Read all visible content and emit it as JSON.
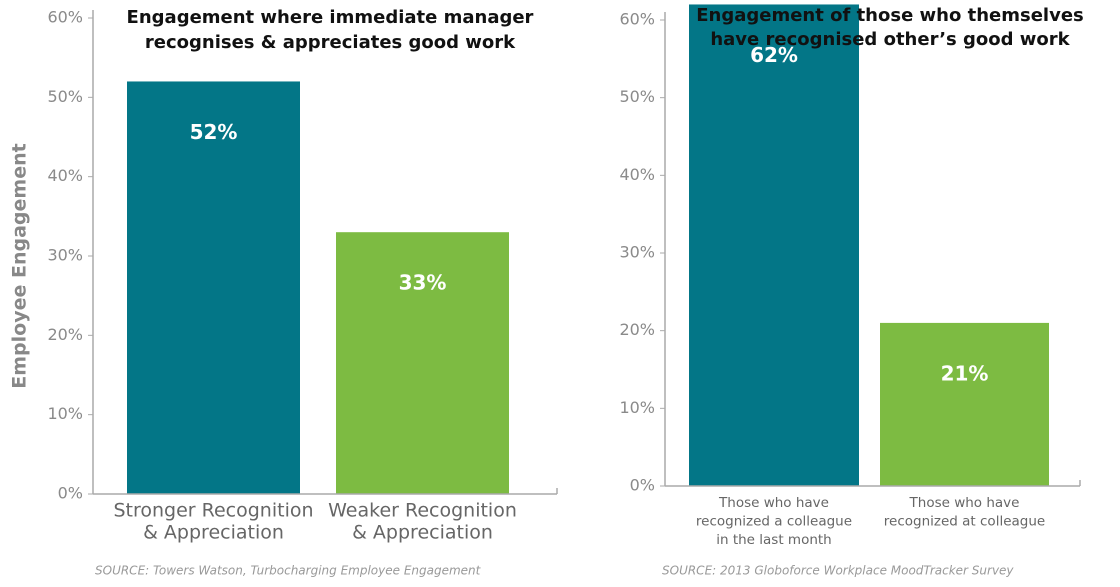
{
  "chart_data": [
    {
      "type": "bar",
      "title": [
        "Engagement where immediate manager",
        "recognises & appreciates good work"
      ],
      "ylabel": "Employee Engagement",
      "categories": [
        [
          "Stronger Recognition",
          "& Appreciation"
        ],
        [
          "Weaker Recognition",
          "& Appreciation"
        ]
      ],
      "values": [
        52,
        33
      ],
      "value_labels": [
        "52%",
        "33%"
      ],
      "colors": [
        "#037687",
        "#7dbb42"
      ],
      "ylim": [
        0,
        60
      ],
      "yticks": [
        {
          "value": 0,
          "label": "0%"
        },
        {
          "value": 10,
          "label": "10%"
        },
        {
          "value": 20,
          "label": "20%"
        },
        {
          "value": 30,
          "label": "30%"
        },
        {
          "value": 40,
          "label": "40%"
        },
        {
          "value": 50,
          "label": "50%"
        },
        {
          "value": 60,
          "label": "60%"
        }
      ],
      "source": "SOURCE: Towers Watson, Turbocharging Employee Engagement"
    },
    {
      "type": "bar",
      "title": [
        "Engagement of those who themselves",
        "have recognised other’s good work"
      ],
      "categories": [
        [
          "Those who have",
          "recognized a colleague",
          "in the last month"
        ],
        [
          "Those who have",
          "recognized at colleague"
        ]
      ],
      "values": [
        62,
        21
      ],
      "value_labels": [
        "62%",
        "21%"
      ],
      "colors": [
        "#037687",
        "#7dbb42"
      ],
      "ylim": [
        0,
        60
      ],
      "yticks": [
        {
          "value": 0,
          "label": "0%"
        },
        {
          "value": 10,
          "label": "10%"
        },
        {
          "value": 20,
          "label": "20%"
        },
        {
          "value": 30,
          "label": "30%"
        },
        {
          "value": 40,
          "label": "40%"
        },
        {
          "value": 50,
          "label": "50%"
        },
        {
          "value": 60,
          "label": "60%"
        }
      ],
      "source": "SOURCE: 2013 Globoforce Workplace MoodTracker Survey"
    }
  ]
}
